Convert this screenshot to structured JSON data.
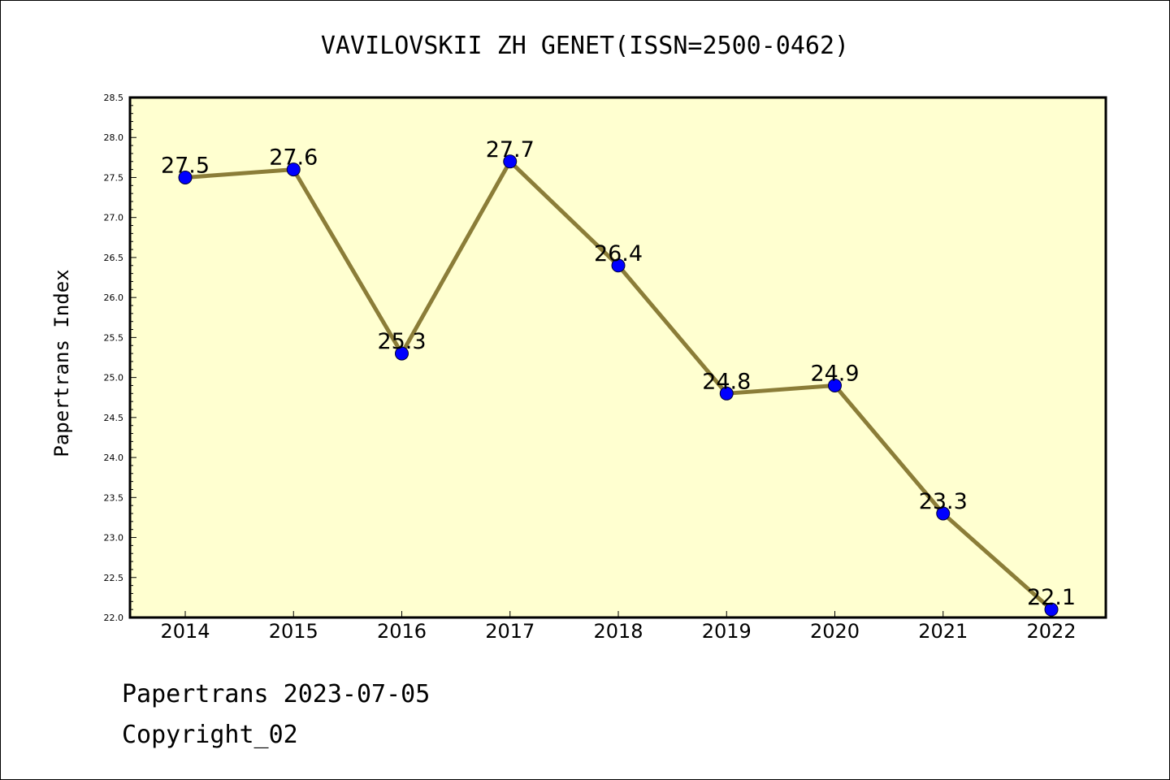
{
  "chart_data": {
    "type": "line",
    "title": "VAVILOVSKII ZH GENET(ISSN=2500-0462)",
    "xlabel": "",
    "ylabel": "Papertrans Index",
    "categories": [
      "2014",
      "2015",
      "2016",
      "2017",
      "2018",
      "2019",
      "2020",
      "2021",
      "2022"
    ],
    "values": [
      27.5,
      27.6,
      25.3,
      27.7,
      26.4,
      24.8,
      24.9,
      23.3,
      22.1
    ],
    "data_labels": [
      "27.5",
      "27.6",
      "25.3",
      "27.7",
      "26.4",
      "24.8",
      "24.9",
      "23.3",
      "22.1"
    ],
    "ylim": [
      22.0,
      28.5
    ],
    "yticks": [
      "22.0",
      "22.5",
      "23.0",
      "23.5",
      "24.0",
      "24.5",
      "25.0",
      "25.5",
      "26.0",
      "26.5",
      "27.0",
      "27.5",
      "28.0",
      "28.5"
    ],
    "grid": false,
    "legend": "none",
    "colors": {
      "plot_background": "#ffffd0",
      "line": "#8b7d38",
      "marker": "#0000ff"
    }
  },
  "footer": {
    "date_line": "Papertrans 2023-07-05",
    "copyright": "Copyright_02"
  }
}
